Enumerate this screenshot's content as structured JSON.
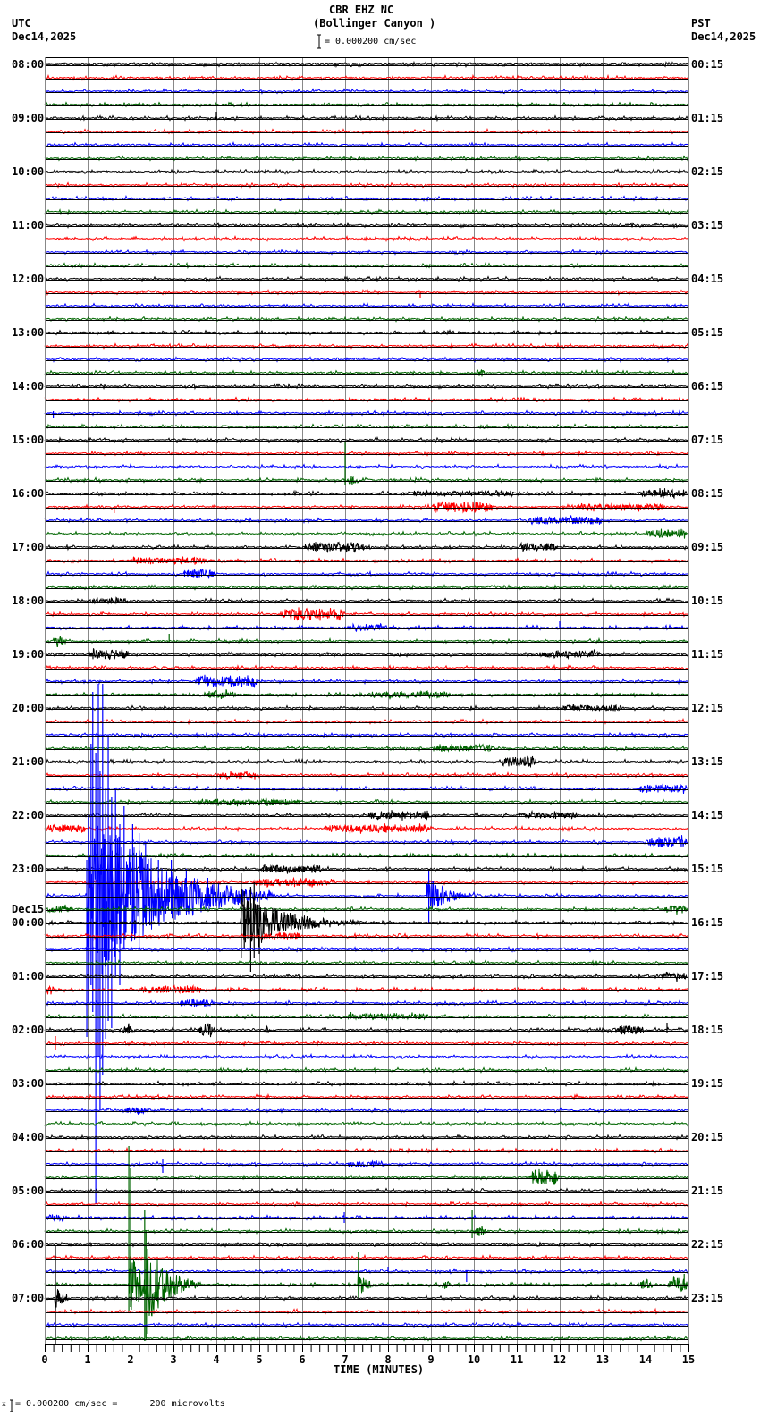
{
  "header": {
    "station": "CBR EHZ NC",
    "location": "(Bollinger Canyon )",
    "left_tz": "UTC",
    "left_date": "Dec14,2025",
    "right_tz": "PST",
    "right_date": "Dec14,2025",
    "scale_text": "= 0.000200 cm/sec"
  },
  "footer": {
    "marker": "x",
    "scale_text": "= 0.000200 cm/sec =      200 microvolts"
  },
  "axes": {
    "xlabel": "TIME (MINUTES)",
    "xtick_labels": [
      "0",
      "1",
      "2",
      "3",
      "4",
      "5",
      "6",
      "7",
      "8",
      "9",
      "10",
      "11",
      "12",
      "13",
      "14",
      "15"
    ],
    "left_labels": [
      "08:00",
      "09:00",
      "10:00",
      "11:00",
      "12:00",
      "13:00",
      "14:00",
      "15:00",
      "16:00",
      "17:00",
      "18:00",
      "19:00",
      "20:00",
      "21:00",
      "22:00",
      "23:00",
      "00:00",
      "01:00",
      "02:00",
      "03:00",
      "04:00",
      "05:00",
      "06:00",
      "07:00"
    ],
    "right_labels": [
      "00:15",
      "01:15",
      "02:15",
      "03:15",
      "04:15",
      "05:15",
      "06:15",
      "07:15",
      "08:15",
      "09:15",
      "10:15",
      "11:15",
      "12:15",
      "13:15",
      "14:15",
      "15:15",
      "16:15",
      "17:15",
      "18:15",
      "19:15",
      "20:15",
      "21:15",
      "22:15",
      "23:15"
    ],
    "date_change": {
      "text": "Dec15",
      "hour_index": 16
    }
  },
  "chart_data": {
    "type": "line",
    "title": "CBR EHZ NC (Bollinger Canyon )",
    "subtitle": "= 0.000200 cm/sec",
    "xlabel": "TIME (MINUTES)",
    "ylabel": "",
    "xlim": [
      0,
      15
    ],
    "x_major_ticks": [
      0,
      1,
      2,
      3,
      4,
      5,
      6,
      7,
      8,
      9,
      10,
      11,
      12,
      13,
      14,
      15
    ],
    "x_minor_tick_step": 0.2,
    "grid": true,
    "rows": 96,
    "traces_per_hour": 4,
    "start_utc": "08:00 Dec14,2025",
    "start_pst": "00:15 Dec14,2025",
    "trace_colors": [
      "#000000",
      "#ff0000",
      "#0000ff",
      "#006600"
    ],
    "grid_color": "#888888",
    "baseline_color": "#000000",
    "scale": "0.000200 cm/sec = 200 microvolts",
    "events": [
      {
        "trace": 4,
        "type": "spike",
        "t": 4.0,
        "up": 7,
        "down": 2
      },
      {
        "trace": 17,
        "type": "spike",
        "t": 8.75,
        "up": 1,
        "down": 6
      },
      {
        "trace": 23,
        "type": "burst",
        "t0": 10.0,
        "t1": 10.3,
        "amp": 4
      },
      {
        "trace": 26,
        "type": "spike",
        "t": 0.2,
        "up": 2,
        "down": 6
      },
      {
        "trace": 31,
        "type": "spike",
        "t": 7.0,
        "up": 44,
        "down": 6
      },
      {
        "trace": 31,
        "type": "burst",
        "t0": 7.0,
        "t1": 7.3,
        "amp": 5
      },
      {
        "trace": 32,
        "type": "burst",
        "t0": 8.5,
        "t1": 11.0,
        "amp": 2.5
      },
      {
        "trace": 32,
        "type": "burst",
        "t0": 13.8,
        "t1": 15.0,
        "amp": 4
      },
      {
        "trace": 33,
        "type": "burst",
        "t0": 9.0,
        "t1": 10.5,
        "amp": 6
      },
      {
        "trace": 33,
        "type": "spike",
        "t": 1.62,
        "up": 1,
        "down": 7
      },
      {
        "trace": 33,
        "type": "burst",
        "t0": 12.3,
        "t1": 14.5,
        "amp": 3
      },
      {
        "trace": 34,
        "type": "burst",
        "t0": 11.2,
        "t1": 13.0,
        "amp": 4
      },
      {
        "trace": 35,
        "type": "burst",
        "t0": 14.0,
        "t1": 15.0,
        "amp": 4
      },
      {
        "trace": 36,
        "type": "burst",
        "t0": 6.0,
        "t1": 7.5,
        "amp": 5
      },
      {
        "trace": 36,
        "type": "burst",
        "t0": 11.0,
        "t1": 12.0,
        "amp": 4
      },
      {
        "trace": 37,
        "type": "burst",
        "t0": 2.0,
        "t1": 3.8,
        "amp": 3.5
      },
      {
        "trace": 38,
        "type": "burst",
        "t0": 3.2,
        "t1": 4.0,
        "amp": 5
      },
      {
        "trace": 40,
        "type": "burst",
        "t0": 1.0,
        "t1": 2.0,
        "amp": 3
      },
      {
        "trace": 41,
        "type": "burst",
        "t0": 5.5,
        "t1": 7.0,
        "amp": 6
      },
      {
        "trace": 42,
        "type": "burst",
        "t0": 7.0,
        "t1": 8.0,
        "amp": 3.5
      },
      {
        "trace": 42,
        "type": "spike",
        "t": 12.0,
        "up": 7,
        "down": 1
      },
      {
        "trace": 43,
        "type": "burst",
        "t0": 0.15,
        "t1": 0.5,
        "amp": 6
      },
      {
        "trace": 43,
        "type": "spike",
        "t": 2.9,
        "up": 8,
        "down": 1
      },
      {
        "trace": 44,
        "type": "burst",
        "t0": 1.0,
        "t1": 2.0,
        "amp": 5
      },
      {
        "trace": 44,
        "type": "burst",
        "t0": 11.5,
        "t1": 13.0,
        "amp": 3.5
      },
      {
        "trace": 46,
        "type": "burst",
        "t0": 3.5,
        "t1": 5.0,
        "amp": 6
      },
      {
        "trace": 47,
        "type": "burst",
        "t0": 3.7,
        "t1": 4.5,
        "amp": 4
      },
      {
        "trace": 47,
        "type": "burst",
        "t0": 7.5,
        "t1": 9.5,
        "amp": 3
      },
      {
        "trace": 48,
        "type": "burst",
        "t0": 12.0,
        "t1": 13.5,
        "amp": 3
      },
      {
        "trace": 51,
        "type": "burst",
        "t0": 9.0,
        "t1": 10.5,
        "amp": 3.5
      },
      {
        "trace": 52,
        "type": "burst",
        "t0": 10.6,
        "t1": 11.5,
        "amp": 5
      },
      {
        "trace": 53,
        "type": "burst",
        "t0": 4.0,
        "t1": 5.0,
        "amp": 3
      },
      {
        "trace": 54,
        "type": "burst",
        "t0": 13.8,
        "t1": 15.0,
        "amp": 4
      },
      {
        "trace": 55,
        "type": "burst",
        "t0": 3.5,
        "t1": 6.0,
        "amp": 3
      },
      {
        "trace": 56,
        "type": "burst",
        "t0": 7.5,
        "t1": 9.0,
        "amp": 4
      },
      {
        "trace": 56,
        "type": "burst",
        "t0": 11.0,
        "t1": 12.5,
        "amp": 3
      },
      {
        "trace": 57,
        "type": "burst",
        "t0": 0.0,
        "t1": 1.0,
        "amp": 4
      },
      {
        "trace": 57,
        "type": "burst",
        "t0": 6.5,
        "t1": 9.0,
        "amp": 4
      },
      {
        "trace": 58,
        "type": "burst",
        "t0": 14.0,
        "t1": 15.0,
        "amp": 6
      },
      {
        "trace": 60,
        "type": "burst",
        "t0": 5.0,
        "t1": 6.5,
        "amp": 4
      },
      {
        "trace": 61,
        "type": "burst",
        "t0": 4.8,
        "t1": 6.8,
        "amp": 4
      },
      {
        "trace": 62,
        "type": "quake",
        "t0": 1.0,
        "t1": 5.3,
        "amp": 120,
        "tau": 1.4
      },
      {
        "trace": 62,
        "type": "quake",
        "t0": 8.9,
        "t1": 10.4,
        "amp": 26,
        "tau": 0.4
      },
      {
        "trace": 62,
        "type": "spike",
        "t": 0.98,
        "up": 40,
        "down": 158
      },
      {
        "trace": 62,
        "type": "spike",
        "t": 1.02,
        "up": 90,
        "down": 120
      },
      {
        "trace": 62,
        "type": "spike",
        "t": 1.08,
        "up": 170,
        "down": 100
      },
      {
        "trace": 62,
        "type": "spike",
        "t": 1.12,
        "up": 228,
        "down": 130
      },
      {
        "trace": 62,
        "type": "spike",
        "t": 1.19,
        "up": 160,
        "down": 345
      },
      {
        "trace": 62,
        "type": "spike",
        "t": 1.25,
        "up": 237,
        "down": 180
      },
      {
        "trace": 62,
        "type": "spike",
        "t": 1.29,
        "up": 140,
        "down": 240
      },
      {
        "trace": 62,
        "type": "spike",
        "t": 1.35,
        "up": 237,
        "down": 200
      },
      {
        "trace": 62,
        "type": "spike",
        "t": 1.42,
        "up": 120,
        "down": 160
      },
      {
        "trace": 62,
        "type": "spike",
        "t": 1.48,
        "up": 180,
        "down": 140
      },
      {
        "trace": 62,
        "type": "spike",
        "t": 1.56,
        "up": 110,
        "down": 148
      },
      {
        "trace": 62,
        "type": "spike",
        "t": 1.65,
        "up": 120,
        "down": 90
      },
      {
        "trace": 62,
        "type": "spike",
        "t": 1.75,
        "up": 80,
        "down": 100
      },
      {
        "trace": 62,
        "type": "spike",
        "t": 1.85,
        "up": 100,
        "down": 60
      },
      {
        "trace": 62,
        "type": "spike",
        "t": 2.05,
        "up": 80,
        "down": 40
      },
      {
        "trace": 62,
        "type": "spike",
        "t": 2.2,
        "up": 70,
        "down": 60
      },
      {
        "trace": 62,
        "type": "spike",
        "t": 2.35,
        "up": 60,
        "down": 25
      },
      {
        "trace": 62,
        "type": "spike",
        "t": 2.65,
        "up": 40,
        "down": 30
      },
      {
        "trace": 62,
        "type": "spike",
        "t": 2.95,
        "up": 40,
        "down": 20
      },
      {
        "trace": 62,
        "type": "spike",
        "t": 3.3,
        "up": 30,
        "down": 15
      },
      {
        "trace": 62,
        "type": "spike",
        "t": 3.8,
        "up": 20,
        "down": 12
      },
      {
        "trace": 62,
        "type": "spike",
        "t": 8.95,
        "up": 28,
        "down": 30
      },
      {
        "trace": 63,
        "type": "burst",
        "t0": 0.0,
        "t1": 0.7,
        "amp": 3
      },
      {
        "trace": 63,
        "type": "burst",
        "t0": 14.4,
        "t1": 15.0,
        "amp": 4
      },
      {
        "trace": 64,
        "type": "quake",
        "t0": 4.58,
        "t1": 7.6,
        "amp": 40,
        "tau": 0.9
      },
      {
        "trace": 64,
        "type": "spike",
        "t": 4.58,
        "up": 55,
        "down": 40
      },
      {
        "trace": 64,
        "type": "spike",
        "t": 4.65,
        "up": 35,
        "down": 30
      },
      {
        "trace": 64,
        "type": "spike",
        "t": 4.8,
        "up": 40,
        "down": 55
      },
      {
        "trace": 64,
        "type": "spike",
        "t": 4.88,
        "up": 45,
        "down": 40
      },
      {
        "trace": 64,
        "type": "spike",
        "t": 5.0,
        "up": 20,
        "down": 35
      },
      {
        "trace": 65,
        "type": "burst",
        "t0": 5.0,
        "t1": 6.0,
        "amp": 3
      },
      {
        "trace": 68,
        "type": "burst",
        "t0": 14.3,
        "t1": 15.0,
        "amp": 4
      },
      {
        "trace": 69,
        "type": "burst",
        "t0": 0.0,
        "t1": 0.3,
        "amp": 5
      },
      {
        "trace": 69,
        "type": "burst",
        "t0": 2.2,
        "t1": 3.7,
        "amp": 4
      },
      {
        "trace": 70,
        "type": "burst",
        "t0": 3.1,
        "t1": 4.0,
        "amp": 3.5
      },
      {
        "trace": 71,
        "type": "burst",
        "t0": 7.0,
        "t1": 9.0,
        "amp": 3
      },
      {
        "trace": 72,
        "type": "burst",
        "t0": 1.77,
        "t1": 2.1,
        "amp": 6
      },
      {
        "trace": 72,
        "type": "burst",
        "t0": 3.55,
        "t1": 4.0,
        "amp": 6
      },
      {
        "trace": 72,
        "type": "burst",
        "t0": 5.1,
        "t1": 5.3,
        "amp": 5
      },
      {
        "trace": 72,
        "type": "burst",
        "t0": 13.3,
        "t1": 14.0,
        "amp": 5
      },
      {
        "trace": 72,
        "type": "spike",
        "t": 14.5,
        "up": 8,
        "down": 3
      },
      {
        "trace": 73,
        "type": "spike",
        "t": 0.25,
        "up": 8,
        "down": 8
      },
      {
        "trace": 73,
        "type": "spike",
        "t": 2.8,
        "up": 1,
        "down": 5
      },
      {
        "trace": 78,
        "type": "burst",
        "t0": 1.8,
        "t1": 2.5,
        "amp": 3
      },
      {
        "trace": 82,
        "type": "spike",
        "t": 2.75,
        "up": 6,
        "down": 10
      },
      {
        "trace": 82,
        "type": "burst",
        "t0": 7.0,
        "t1": 8.0,
        "amp": 3
      },
      {
        "trace": 83,
        "type": "burst",
        "t0": 11.27,
        "t1": 12.0,
        "amp": 8
      },
      {
        "trace": 86,
        "type": "spike",
        "t": 6.98,
        "up": 6,
        "down": 6
      },
      {
        "trace": 86,
        "type": "burst",
        "t0": 0.0,
        "t1": 0.5,
        "amp": 4
      },
      {
        "trace": 87,
        "type": "spike",
        "t": 9.96,
        "up": 23,
        "down": 8
      },
      {
        "trace": 87,
        "type": "burst",
        "t0": 9.96,
        "t1": 10.3,
        "amp": 6
      },
      {
        "trace": 90,
        "type": "spike",
        "t": 9.83,
        "up": 1,
        "down": 12
      },
      {
        "trace": 90,
        "type": "spike",
        "t": 8.0,
        "up": 5,
        "down": 1
      },
      {
        "trace": 91,
        "type": "quake",
        "t0": 1.96,
        "t1": 3.6,
        "amp": 35,
        "tau": 0.5
      },
      {
        "trace": 91,
        "type": "quake",
        "t0": 2.33,
        "t1": 3.6,
        "amp": 50,
        "tau": 0.5
      },
      {
        "trace": 91,
        "type": "spike",
        "t": 1.96,
        "up": 155,
        "down": 30
      },
      {
        "trace": 91,
        "type": "spike",
        "t": 2.0,
        "up": 130,
        "down": 25
      },
      {
        "trace": 91,
        "type": "spike",
        "t": 2.33,
        "up": 84,
        "down": 63
      },
      {
        "trace": 91,
        "type": "spike",
        "t": 2.36,
        "up": 60,
        "down": 60
      },
      {
        "trace": 91,
        "type": "spike",
        "t": 2.4,
        "up": 40,
        "down": 55
      },
      {
        "trace": 91,
        "type": "quake",
        "t0": 7.3,
        "t1": 7.9,
        "amp": 15,
        "tau": 0.2
      },
      {
        "trace": 91,
        "type": "spike",
        "t": 7.31,
        "up": 36,
        "down": 15
      },
      {
        "trace": 91,
        "type": "burst",
        "t0": 9.2,
        "t1": 9.5,
        "amp": 5
      },
      {
        "trace": 91,
        "type": "burst",
        "t0": 13.8,
        "t1": 14.2,
        "amp": 5
      },
      {
        "trace": 91,
        "type": "burst",
        "t0": 14.5,
        "t1": 15.0,
        "amp": 8
      },
      {
        "trace": 91,
        "type": "spike",
        "t": 14.9,
        "up": 12,
        "down": 4
      },
      {
        "trace": 92,
        "type": "quake",
        "t0": 0.25,
        "t1": 0.55,
        "amp": 15,
        "tau": 0.15
      },
      {
        "trace": 92,
        "type": "spike",
        "t": 0.25,
        "up": 59,
        "down": 52
      }
    ]
  }
}
